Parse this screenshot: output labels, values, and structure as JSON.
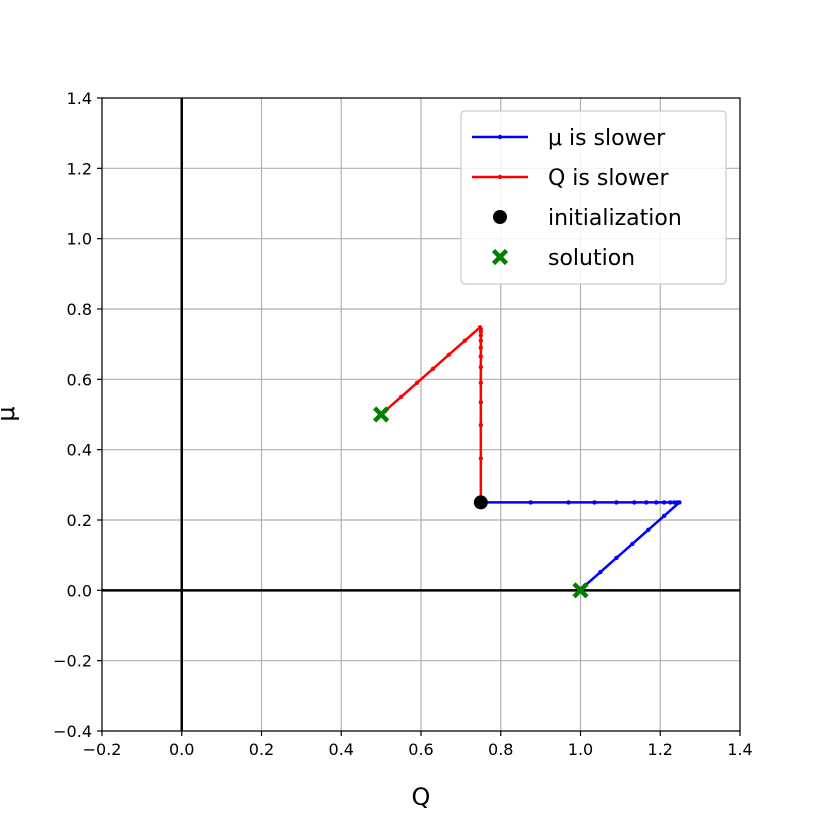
{
  "chart_data": {
    "type": "line",
    "xlabel": "Q",
    "ylabel": "μ",
    "xlim": [
      -0.2,
      1.4
    ],
    "ylim": [
      -0.4,
      1.4
    ],
    "xticks": [
      "−0.2",
      "0.0",
      "0.2",
      "0.4",
      "0.6",
      "0.8",
      "1.0",
      "1.2",
      "1.4"
    ],
    "yticks": [
      "−0.4",
      "−0.2",
      "0.0",
      "0.2",
      "0.4",
      "0.6",
      "0.8",
      "1.0",
      "1.2",
      "1.4"
    ],
    "grid": true,
    "legend_position": "top-right",
    "series": [
      {
        "name": "μ is slower",
        "color": "#0000ff",
        "points": [
          [
            0.75,
            0.25
          ],
          [
            0.875,
            0.25
          ],
          [
            0.97,
            0.25
          ],
          [
            1.035,
            0.25
          ],
          [
            1.09,
            0.25
          ],
          [
            1.135,
            0.25
          ],
          [
            1.165,
            0.25
          ],
          [
            1.19,
            0.25
          ],
          [
            1.21,
            0.25
          ],
          [
            1.225,
            0.25
          ],
          [
            1.235,
            0.25
          ],
          [
            1.243,
            0.25
          ],
          [
            1.248,
            0.25
          ],
          [
            1.21,
            0.212
          ],
          [
            1.17,
            0.172
          ],
          [
            1.13,
            0.132
          ],
          [
            1.09,
            0.092
          ],
          [
            1.05,
            0.052
          ],
          [
            1.01,
            0.012
          ],
          [
            1.0,
            0.0
          ]
        ]
      },
      {
        "name": "Q is slower",
        "color": "#ff0000",
        "points": [
          [
            0.75,
            0.25
          ],
          [
            0.75,
            0.375
          ],
          [
            0.75,
            0.47
          ],
          [
            0.75,
            0.535
          ],
          [
            0.75,
            0.59
          ],
          [
            0.75,
            0.635
          ],
          [
            0.75,
            0.665
          ],
          [
            0.75,
            0.69
          ],
          [
            0.75,
            0.71
          ],
          [
            0.75,
            0.725
          ],
          [
            0.75,
            0.735
          ],
          [
            0.75,
            0.743
          ],
          [
            0.748,
            0.748
          ],
          [
            0.71,
            0.71
          ],
          [
            0.67,
            0.67
          ],
          [
            0.63,
            0.63
          ],
          [
            0.59,
            0.59
          ],
          [
            0.55,
            0.55
          ],
          [
            0.51,
            0.51
          ],
          [
            0.5,
            0.5
          ]
        ]
      }
    ],
    "markers": [
      {
        "name": "initialization",
        "shape": "circle",
        "color": "#000000",
        "x": 0.75,
        "y": 0.25
      },
      {
        "name": "solution",
        "shape": "x",
        "color": "#008000",
        "points": [
          [
            0.5,
            0.5
          ],
          [
            1.0,
            0.0
          ]
        ]
      }
    ],
    "legend": [
      {
        "label": "μ is slower",
        "kind": "line",
        "color": "#0000ff"
      },
      {
        "label": "Q is slower",
        "kind": "line",
        "color": "#ff0000"
      },
      {
        "label": "initialization",
        "kind": "circle",
        "color": "#000000"
      },
      {
        "label": "solution",
        "kind": "x",
        "color": "#008000"
      }
    ]
  }
}
